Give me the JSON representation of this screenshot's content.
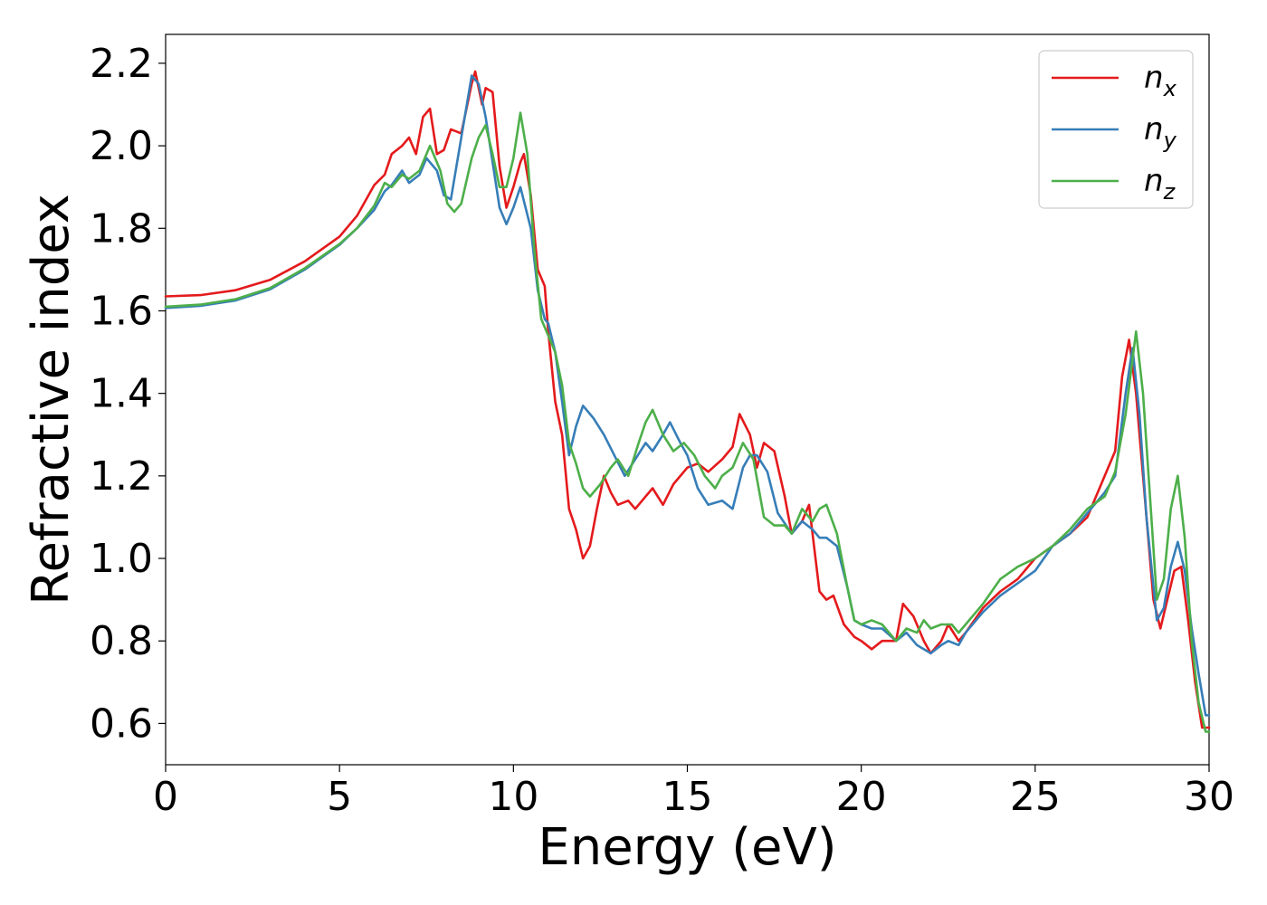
{
  "chart_data": {
    "type": "line",
    "title": "",
    "xlabel": "Energy (eV)",
    "ylabel": "Refractive index",
    "xlim": [
      0,
      30
    ],
    "ylim": [
      0.5,
      2.27
    ],
    "xticks": [
      0,
      5,
      10,
      15,
      20,
      25,
      30
    ],
    "xtick_labels": [
      "0",
      "5",
      "10",
      "15",
      "20",
      "25",
      "30"
    ],
    "yticks": [
      0.6,
      0.8,
      1.0,
      1.2,
      1.4,
      1.6,
      1.8,
      2.0,
      2.2
    ],
    "ytick_labels": [
      "0.6",
      "0.8",
      "1.0",
      "1.2",
      "1.4",
      "1.6",
      "1.8",
      "2.0",
      "2.2"
    ],
    "grid": false,
    "legend_position": "top-right",
    "series": [
      {
        "name": "n",
        "subscript": "x",
        "color": "#e41a1c",
        "points": [
          [
            0,
            1.635
          ],
          [
            1,
            1.638
          ],
          [
            2,
            1.65
          ],
          [
            3,
            1.675
          ],
          [
            4,
            1.72
          ],
          [
            5,
            1.78
          ],
          [
            5.5,
            1.83
          ],
          [
            6,
            1.905
          ],
          [
            6.3,
            1.93
          ],
          [
            6.5,
            1.98
          ],
          [
            6.8,
            2.0
          ],
          [
            7,
            2.02
          ],
          [
            7.2,
            1.98
          ],
          [
            7.4,
            2.07
          ],
          [
            7.6,
            2.09
          ],
          [
            7.8,
            1.98
          ],
          [
            8.0,
            1.99
          ],
          [
            8.2,
            2.04
          ],
          [
            8.5,
            2.03
          ],
          [
            8.8,
            2.15
          ],
          [
            8.9,
            2.18
          ],
          [
            9.1,
            2.1
          ],
          [
            9.2,
            2.14
          ],
          [
            9.4,
            2.13
          ],
          [
            9.6,
            1.95
          ],
          [
            9.8,
            1.85
          ],
          [
            10.0,
            1.9
          ],
          [
            10.2,
            1.96
          ],
          [
            10.3,
            1.98
          ],
          [
            10.5,
            1.88
          ],
          [
            10.7,
            1.7
          ],
          [
            10.9,
            1.66
          ],
          [
            11.0,
            1.55
          ],
          [
            11.2,
            1.38
          ],
          [
            11.4,
            1.3
          ],
          [
            11.6,
            1.12
          ],
          [
            11.8,
            1.07
          ],
          [
            12.0,
            1.0
          ],
          [
            12.2,
            1.03
          ],
          [
            12.4,
            1.12
          ],
          [
            12.6,
            1.2
          ],
          [
            12.8,
            1.16
          ],
          [
            13.0,
            1.13
          ],
          [
            13.3,
            1.14
          ],
          [
            13.5,
            1.12
          ],
          [
            13.8,
            1.15
          ],
          [
            14.0,
            1.17
          ],
          [
            14.3,
            1.13
          ],
          [
            14.6,
            1.18
          ],
          [
            15.0,
            1.22
          ],
          [
            15.3,
            1.23
          ],
          [
            15.6,
            1.21
          ],
          [
            16.0,
            1.24
          ],
          [
            16.3,
            1.27
          ],
          [
            16.5,
            1.35
          ],
          [
            16.8,
            1.3
          ],
          [
            17.0,
            1.22
          ],
          [
            17.2,
            1.28
          ],
          [
            17.5,
            1.26
          ],
          [
            17.8,
            1.15
          ],
          [
            18.0,
            1.06
          ],
          [
            18.3,
            1.09
          ],
          [
            18.5,
            1.13
          ],
          [
            18.8,
            0.92
          ],
          [
            19.0,
            0.9
          ],
          [
            19.2,
            0.91
          ],
          [
            19.5,
            0.84
          ],
          [
            19.8,
            0.81
          ],
          [
            20.0,
            0.8
          ],
          [
            20.3,
            0.78
          ],
          [
            20.6,
            0.8
          ],
          [
            21.0,
            0.8
          ],
          [
            21.2,
            0.89
          ],
          [
            21.5,
            0.86
          ],
          [
            21.8,
            0.8
          ],
          [
            22.0,
            0.77
          ],
          [
            22.3,
            0.8
          ],
          [
            22.5,
            0.84
          ],
          [
            22.8,
            0.8
          ],
          [
            23.0,
            0.82
          ],
          [
            23.5,
            0.88
          ],
          [
            24.0,
            0.92
          ],
          [
            24.5,
            0.95
          ],
          [
            25.0,
            1.0
          ],
          [
            25.5,
            1.03
          ],
          [
            26.0,
            1.06
          ],
          [
            26.5,
            1.1
          ],
          [
            27.0,
            1.2
          ],
          [
            27.3,
            1.26
          ],
          [
            27.5,
            1.44
          ],
          [
            27.7,
            1.53
          ],
          [
            27.9,
            1.4
          ],
          [
            28.1,
            1.2
          ],
          [
            28.4,
            0.9
          ],
          [
            28.6,
            0.83
          ],
          [
            28.8,
            0.9
          ],
          [
            29.0,
            0.97
          ],
          [
            29.2,
            0.98
          ],
          [
            29.4,
            0.85
          ],
          [
            29.6,
            0.7
          ],
          [
            29.8,
            0.59
          ],
          [
            30.0,
            0.59
          ]
        ]
      },
      {
        "name": "n",
        "subscript": "y",
        "color": "#377eb8",
        "points": [
          [
            0,
            1.607
          ],
          [
            1,
            1.612
          ],
          [
            2,
            1.625
          ],
          [
            3,
            1.652
          ],
          [
            4,
            1.7
          ],
          [
            5,
            1.76
          ],
          [
            5.5,
            1.8
          ],
          [
            6,
            1.845
          ],
          [
            6.3,
            1.89
          ],
          [
            6.5,
            1.905
          ],
          [
            6.8,
            1.94
          ],
          [
            7.0,
            1.91
          ],
          [
            7.3,
            1.93
          ],
          [
            7.5,
            1.97
          ],
          [
            7.8,
            1.94
          ],
          [
            8.0,
            1.88
          ],
          [
            8.2,
            1.87
          ],
          [
            8.5,
            2.02
          ],
          [
            8.8,
            2.17
          ],
          [
            9.0,
            2.15
          ],
          [
            9.2,
            2.07
          ],
          [
            9.4,
            1.96
          ],
          [
            9.6,
            1.85
          ],
          [
            9.8,
            1.81
          ],
          [
            10.0,
            1.85
          ],
          [
            10.2,
            1.9
          ],
          [
            10.5,
            1.8
          ],
          [
            10.7,
            1.65
          ],
          [
            10.9,
            1.58
          ],
          [
            11.0,
            1.57
          ],
          [
            11.2,
            1.5
          ],
          [
            11.4,
            1.38
          ],
          [
            11.6,
            1.25
          ],
          [
            11.8,
            1.32
          ],
          [
            12.0,
            1.37
          ],
          [
            12.3,
            1.34
          ],
          [
            12.6,
            1.3
          ],
          [
            12.9,
            1.25
          ],
          [
            13.2,
            1.2
          ],
          [
            13.5,
            1.24
          ],
          [
            13.8,
            1.28
          ],
          [
            14.0,
            1.26
          ],
          [
            14.3,
            1.3
          ],
          [
            14.5,
            1.33
          ],
          [
            14.8,
            1.28
          ],
          [
            15.0,
            1.25
          ],
          [
            15.3,
            1.17
          ],
          [
            15.6,
            1.13
          ],
          [
            16.0,
            1.14
          ],
          [
            16.3,
            1.12
          ],
          [
            16.6,
            1.22
          ],
          [
            16.8,
            1.25
          ],
          [
            17.0,
            1.25
          ],
          [
            17.3,
            1.21
          ],
          [
            17.6,
            1.11
          ],
          [
            18.0,
            1.06
          ],
          [
            18.3,
            1.09
          ],
          [
            18.6,
            1.07
          ],
          [
            18.8,
            1.05
          ],
          [
            19.0,
            1.05
          ],
          [
            19.3,
            1.03
          ],
          [
            19.6,
            0.93
          ],
          [
            19.8,
            0.85
          ],
          [
            20.0,
            0.84
          ],
          [
            20.3,
            0.83
          ],
          [
            20.6,
            0.83
          ],
          [
            21.0,
            0.8
          ],
          [
            21.3,
            0.82
          ],
          [
            21.6,
            0.79
          ],
          [
            22.0,
            0.77
          ],
          [
            22.3,
            0.79
          ],
          [
            22.5,
            0.8
          ],
          [
            22.8,
            0.79
          ],
          [
            23.0,
            0.82
          ],
          [
            23.5,
            0.87
          ],
          [
            24.0,
            0.91
          ],
          [
            24.5,
            0.94
          ],
          [
            25.0,
            0.97
          ],
          [
            25.5,
            1.03
          ],
          [
            26.0,
            1.06
          ],
          [
            26.5,
            1.11
          ],
          [
            27.0,
            1.16
          ],
          [
            27.3,
            1.2
          ],
          [
            27.6,
            1.4
          ],
          [
            27.8,
            1.51
          ],
          [
            28.0,
            1.35
          ],
          [
            28.2,
            1.1
          ],
          [
            28.5,
            0.85
          ],
          [
            28.7,
            0.88
          ],
          [
            28.9,
            0.98
          ],
          [
            29.1,
            1.04
          ],
          [
            29.3,
            0.97
          ],
          [
            29.5,
            0.83
          ],
          [
            29.7,
            0.72
          ],
          [
            29.9,
            0.62
          ],
          [
            30.0,
            0.62
          ]
        ]
      },
      {
        "name": "n",
        "subscript": "z",
        "color": "#4daf4a",
        "points": [
          [
            0,
            1.61
          ],
          [
            1,
            1.615
          ],
          [
            2,
            1.628
          ],
          [
            3,
            1.655
          ],
          [
            4,
            1.703
          ],
          [
            5,
            1.762
          ],
          [
            5.5,
            1.8
          ],
          [
            6,
            1.855
          ],
          [
            6.3,
            1.91
          ],
          [
            6.5,
            1.9
          ],
          [
            6.8,
            1.93
          ],
          [
            7.0,
            1.92
          ],
          [
            7.3,
            1.94
          ],
          [
            7.6,
            2.0
          ],
          [
            7.9,
            1.94
          ],
          [
            8.1,
            1.86
          ],
          [
            8.3,
            1.84
          ],
          [
            8.5,
            1.86
          ],
          [
            8.8,
            1.97
          ],
          [
            9.0,
            2.02
          ],
          [
            9.2,
            2.05
          ],
          [
            9.4,
            1.98
          ],
          [
            9.6,
            1.9
          ],
          [
            9.8,
            1.9
          ],
          [
            10.0,
            1.97
          ],
          [
            10.2,
            2.08
          ],
          [
            10.4,
            1.98
          ],
          [
            10.6,
            1.75
          ],
          [
            10.8,
            1.58
          ],
          [
            11.0,
            1.54
          ],
          [
            11.2,
            1.5
          ],
          [
            11.4,
            1.42
          ],
          [
            11.6,
            1.28
          ],
          [
            11.8,
            1.23
          ],
          [
            12.0,
            1.17
          ],
          [
            12.2,
            1.15
          ],
          [
            12.5,
            1.18
          ],
          [
            12.8,
            1.22
          ],
          [
            13.0,
            1.24
          ],
          [
            13.3,
            1.2
          ],
          [
            13.6,
            1.28
          ],
          [
            13.8,
            1.33
          ],
          [
            14.0,
            1.36
          ],
          [
            14.3,
            1.3
          ],
          [
            14.6,
            1.26
          ],
          [
            14.9,
            1.28
          ],
          [
            15.2,
            1.25
          ],
          [
            15.5,
            1.2
          ],
          [
            15.8,
            1.17
          ],
          [
            16.0,
            1.2
          ],
          [
            16.3,
            1.22
          ],
          [
            16.6,
            1.28
          ],
          [
            16.9,
            1.24
          ],
          [
            17.2,
            1.1
          ],
          [
            17.5,
            1.08
          ],
          [
            17.8,
            1.08
          ],
          [
            18.0,
            1.06
          ],
          [
            18.3,
            1.12
          ],
          [
            18.6,
            1.09
          ],
          [
            18.8,
            1.12
          ],
          [
            19.0,
            1.13
          ],
          [
            19.3,
            1.06
          ],
          [
            19.6,
            0.93
          ],
          [
            19.8,
            0.85
          ],
          [
            20.0,
            0.84
          ],
          [
            20.3,
            0.85
          ],
          [
            20.6,
            0.84
          ],
          [
            21.0,
            0.8
          ],
          [
            21.3,
            0.83
          ],
          [
            21.6,
            0.82
          ],
          [
            21.8,
            0.85
          ],
          [
            22.0,
            0.83
          ],
          [
            22.3,
            0.84
          ],
          [
            22.6,
            0.84
          ],
          [
            22.8,
            0.82
          ],
          [
            23.0,
            0.84
          ],
          [
            23.5,
            0.89
          ],
          [
            24.0,
            0.95
          ],
          [
            24.5,
            0.98
          ],
          [
            25.0,
            1.0
          ],
          [
            25.5,
            1.03
          ],
          [
            26.0,
            1.07
          ],
          [
            26.5,
            1.12
          ],
          [
            27.0,
            1.15
          ],
          [
            27.3,
            1.21
          ],
          [
            27.6,
            1.35
          ],
          [
            27.9,
            1.55
          ],
          [
            28.1,
            1.4
          ],
          [
            28.3,
            1.15
          ],
          [
            28.5,
            0.9
          ],
          [
            28.7,
            0.95
          ],
          [
            28.9,
            1.12
          ],
          [
            29.1,
            1.2
          ],
          [
            29.3,
            1.05
          ],
          [
            29.5,
            0.8
          ],
          [
            29.7,
            0.65
          ],
          [
            29.9,
            0.58
          ],
          [
            30.0,
            0.58
          ]
        ]
      }
    ]
  }
}
